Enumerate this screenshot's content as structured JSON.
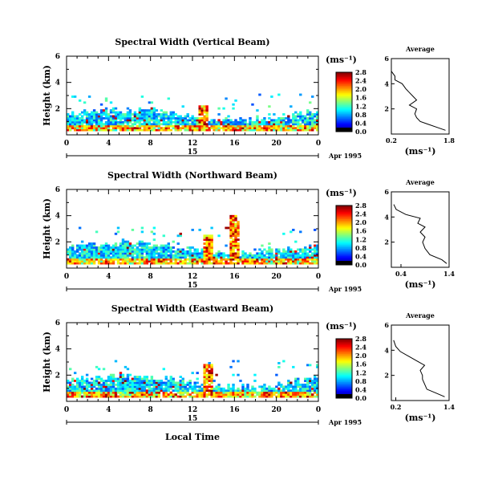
{
  "figure": {
    "xlabel": "Local Time",
    "date_label": "Apr 1995",
    "ylabel": "Height (km)",
    "unit": "(ms⁻¹)",
    "avg_title": "Average"
  },
  "chart_data": [
    {
      "type": "heatmap",
      "title": "Spectral Width (Vertical Beam)",
      "xlabel": "Local Time",
      "ylabel": "Height (km)",
      "x_ticks": [
        "0",
        "4",
        "8",
        "12",
        "16",
        "20",
        "0"
      ],
      "day_label": "15",
      "date": "Apr 1995",
      "xlim": [
        0,
        24
      ],
      "ylim": [
        0,
        6
      ],
      "y_ticks": [
        "2",
        "4",
        "6"
      ],
      "colorbar": {
        "label": "(ms⁻¹)",
        "ticks": [
          "0.0",
          "0.4",
          "0.8",
          "1.2",
          "1.6",
          "2.0",
          "2.4",
          "2.8"
        ],
        "range": [
          0,
          2.8
        ]
      },
      "features": [
        {
          "t0": 0,
          "t1": 24,
          "h": 0.3,
          "w": 0.9
        },
        {
          "t0": 0,
          "t1": 24,
          "h": 0.8,
          "w": 0.9
        },
        {
          "t0": 0,
          "t1": 24,
          "h": 1.3,
          "w": 0.8
        },
        {
          "t0": 12.5,
          "t1": 13.5,
          "h": 2.3,
          "w": 1.8
        }
      ],
      "average": {
        "title": "Average",
        "xlabel": "(ms⁻¹)",
        "x_ticks": [
          "0.2",
          "1.8"
        ],
        "xlim": [
          0.2,
          1.8
        ],
        "y_ticks": [
          "2",
          "4",
          "6"
        ],
        "ylim": [
          0,
          6
        ],
        "profile": [
          [
            1.7,
            0.3
          ],
          [
            1.5,
            0.5
          ],
          [
            1.2,
            0.8
          ],
          [
            1.0,
            1.0
          ],
          [
            0.9,
            1.3
          ],
          [
            0.85,
            1.6
          ],
          [
            0.9,
            2.0
          ],
          [
            0.7,
            2.3
          ],
          [
            0.9,
            2.7
          ],
          [
            0.8,
            3.0
          ],
          [
            0.7,
            3.3
          ],
          [
            0.6,
            3.6
          ],
          [
            0.5,
            4.0
          ],
          [
            0.3,
            4.3
          ],
          [
            0.3,
            4.6
          ],
          [
            0.2,
            5.0
          ]
        ]
      }
    },
    {
      "type": "heatmap",
      "title": "Spectral Width (Northward Beam)",
      "xlabel": "Local Time",
      "ylabel": "Height (km)",
      "x_ticks": [
        "0",
        "4",
        "8",
        "12",
        "16",
        "20",
        "0"
      ],
      "day_label": "15",
      "date": "Apr 1995",
      "xlim": [
        0,
        24
      ],
      "ylim": [
        0,
        6
      ],
      "y_ticks": [
        "2",
        "4",
        "6"
      ],
      "colorbar": {
        "label": "(ms⁻¹)",
        "ticks": [
          "0.0",
          "0.4",
          "0.8",
          "1.2",
          "1.6",
          "2.0",
          "2.4",
          "2.8"
        ],
        "range": [
          0,
          2.8
        ]
      },
      "features": [
        {
          "t0": 0,
          "t1": 24,
          "h": 0.5,
          "w": 0.7
        },
        {
          "t0": 0,
          "t1": 24,
          "h": 1.2,
          "w": 0.7
        },
        {
          "t0": 0,
          "t1": 24,
          "h": 2.0,
          "w": 0.6
        },
        {
          "t0": 13,
          "t1": 14,
          "h": 2.5,
          "w": 2.2
        },
        {
          "t0": 15.5,
          "t1": 16.5,
          "h": 4.0,
          "w": 2.6
        }
      ],
      "average": {
        "title": "Average",
        "xlabel": "(ms⁻¹)",
        "x_ticks": [
          "0.4",
          "1.4"
        ],
        "xlim": [
          0.2,
          1.4
        ],
        "y_ticks": [
          "2",
          "4",
          "6"
        ],
        "ylim": [
          0,
          6
        ],
        "profile": [
          [
            1.35,
            0.3
          ],
          [
            1.25,
            0.6
          ],
          [
            1.0,
            1.0
          ],
          [
            0.9,
            1.5
          ],
          [
            0.85,
            2.0
          ],
          [
            0.9,
            2.4
          ],
          [
            0.8,
            2.8
          ],
          [
            0.9,
            3.2
          ],
          [
            0.75,
            3.5
          ],
          [
            0.8,
            3.9
          ],
          [
            0.5,
            4.2
          ],
          [
            0.3,
            4.6
          ],
          [
            0.25,
            5.0
          ]
        ]
      }
    },
    {
      "type": "heatmap",
      "title": "Spectral Width (Eastward Beam)",
      "xlabel": "Local Time",
      "ylabel": "Height (km)",
      "x_ticks": [
        "0",
        "4",
        "8",
        "12",
        "16",
        "20",
        "0"
      ],
      "day_label": "15",
      "date": "Apr 1995",
      "xlim": [
        0,
        24
      ],
      "ylim": [
        0,
        6
      ],
      "y_ticks": [
        "2",
        "4",
        "6"
      ],
      "colorbar": {
        "label": "(ms⁻¹)",
        "ticks": [
          "0.0",
          "0.4",
          "0.8",
          "1.2",
          "1.6",
          "2.0",
          "2.4",
          "2.8"
        ],
        "range": [
          0,
          2.8
        ]
      },
      "features": [
        {
          "t0": 0,
          "t1": 24,
          "h": 0.4,
          "w": 0.7
        },
        {
          "t0": 0,
          "t1": 24,
          "h": 1.0,
          "w": 0.7
        },
        {
          "t0": 0,
          "t1": 24,
          "h": 1.7,
          "w": 0.6
        },
        {
          "t0": 13,
          "t1": 14,
          "h": 2.8,
          "w": 2.4
        }
      ],
      "average": {
        "title": "Average",
        "xlabel": "(ms⁻¹)",
        "x_ticks": [
          "0.2",
          "1.4"
        ],
        "xlim": [
          0.1,
          1.4
        ],
        "y_ticks": [
          "2",
          "4",
          "6"
        ],
        "ylim": [
          0,
          6
        ],
        "profile": [
          [
            1.3,
            0.3
          ],
          [
            1.1,
            0.6
          ],
          [
            0.9,
            0.9
          ],
          [
            0.85,
            1.3
          ],
          [
            0.8,
            1.7
          ],
          [
            0.8,
            2.0
          ],
          [
            0.75,
            2.4
          ],
          [
            0.85,
            2.8
          ],
          [
            0.7,
            3.1
          ],
          [
            0.5,
            3.5
          ],
          [
            0.3,
            3.9
          ],
          [
            0.2,
            4.3
          ],
          [
            0.15,
            4.8
          ]
        ]
      }
    }
  ]
}
